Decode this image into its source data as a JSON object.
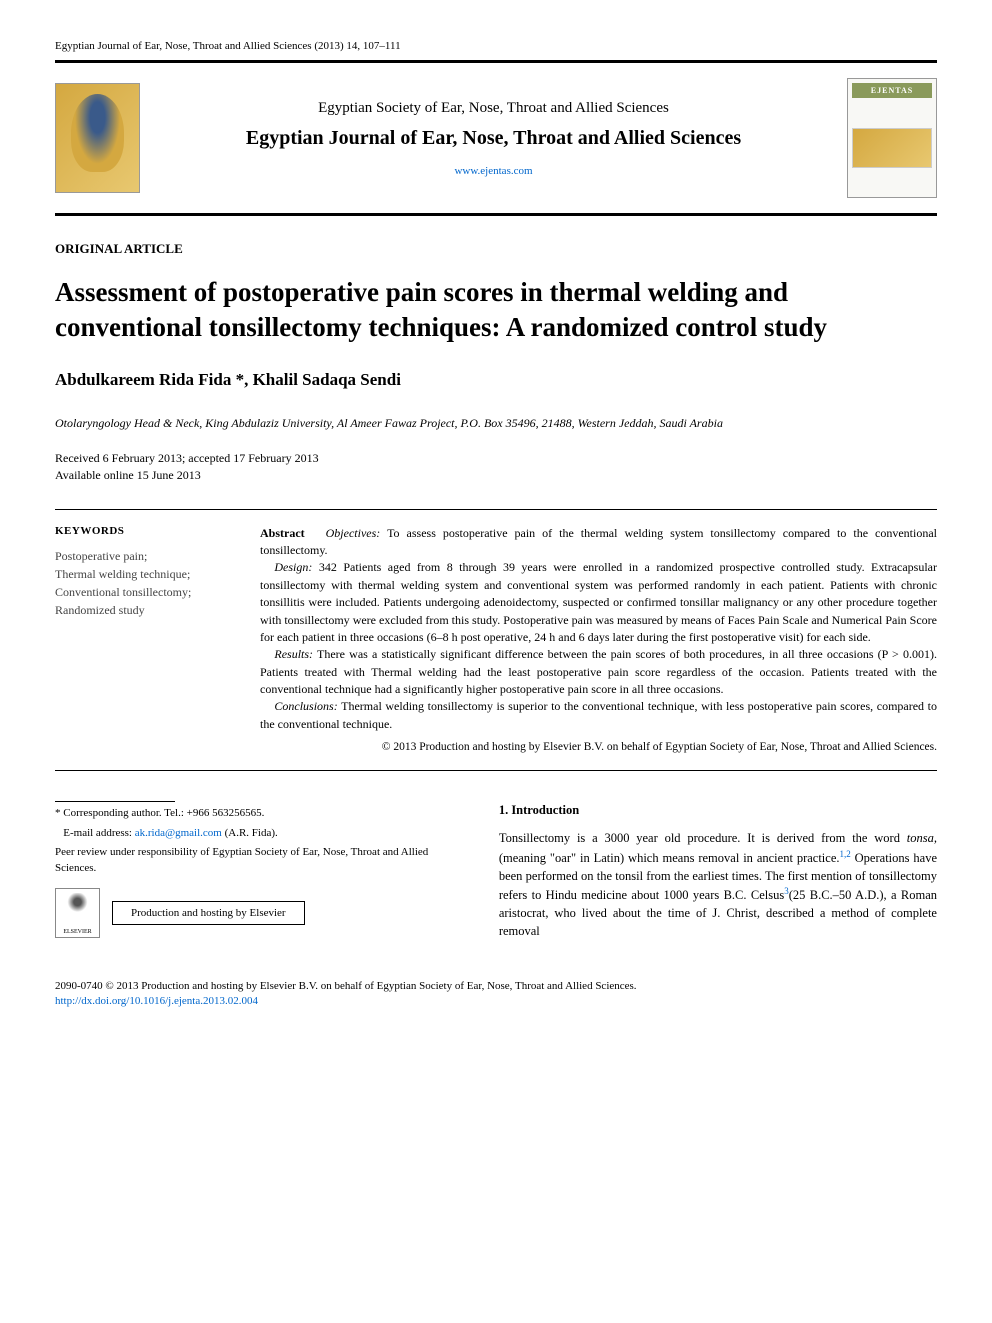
{
  "journal_ref": "Egyptian Journal of Ear, Nose, Throat and Allied Sciences (2013) 14, 107–111",
  "header": {
    "society": "Egyptian Society of Ear, Nose, Throat and Allied Sciences",
    "journal_title": "Egyptian Journal of Ear, Nose, Throat and Allied Sciences",
    "url": "www.ejentas.com",
    "cover_badge": "EJENTAS",
    "elsevier_label": "ELSEVIER"
  },
  "article_type": "ORIGINAL ARTICLE",
  "title": "Assessment of postoperative pain scores in thermal welding and conventional tonsillectomy techniques: A randomized control study",
  "authors": "Abdulkareem Rida Fida *, Khalil Sadaqa Sendi",
  "affiliation": "Otolaryngology Head & Neck, King Abdulaziz University, Al Ameer Fawaz Project, P.O. Box 35496, 21488, Western Jeddah, Saudi Arabia",
  "dates": {
    "received_accepted": "Received 6 February 2013; accepted 17 February 2013",
    "online": "Available online 15 June 2013"
  },
  "keywords": {
    "heading": "KEYWORDS",
    "items": "Postoperative pain;\nThermal welding technique;\nConventional tonsillectomy;\nRandomized study"
  },
  "abstract": {
    "label": "Abstract",
    "objectives_label": "Objectives:",
    "objectives": "To assess postoperative pain of the thermal welding system tonsillectomy compared to the conventional tonsillectomy.",
    "design_label": "Design:",
    "design": "342 Patients aged from 8 through 39 years were enrolled in a randomized prospective controlled study. Extracapsular tonsillectomy with thermal welding system and conventional system was performed randomly in each patient. Patients with chronic tonsillitis were included. Patients undergoing adenoidectomy, suspected or confirmed tonsillar malignancy or any other procedure together with tonsillectomy were excluded from this study. Postoperative pain was measured by means of Faces Pain Scale and Numerical Pain Score for each patient in three occasions (6–8 h post operative, 24 h and 6 days later during the first postoperative visit) for each side.",
    "results_label": "Results:",
    "results": "There was a statistically significant difference between the pain scores of both procedures, in all three occasions (P > 0.001). Patients treated with Thermal welding had the least postoperative pain score regardless of the occasion. Patients treated with the conventional technique had a significantly higher postoperative pain score in all three occasions.",
    "conclusions_label": "Conclusions:",
    "conclusions": "Thermal welding tonsillectomy is superior to the conventional technique, with less postoperative pain scores, compared to the conventional technique.",
    "copyright": "© 2013 Production and hosting by Elsevier B.V. on behalf of Egyptian Society of Ear, Nose, Throat and Allied Sciences."
  },
  "footnotes": {
    "corresponding": "* Corresponding author. Tel.: +966 563256565.",
    "email_label": "E-mail address:",
    "email": "ak.rida@gmail.com",
    "email_author": "(A.R. Fida).",
    "peer_review": "Peer review under responsibility of Egyptian Society of Ear, Nose, Throat and Allied Sciences.",
    "hosting": "Production and hosting by Elsevier"
  },
  "intro": {
    "heading": "1. Introduction",
    "body_before_tonsa": "Tonsillectomy is a 3000 year old procedure. It is derived from the word ",
    "tonsa": "tonsa,",
    "body_after_tonsa": " (meaning \"oar\" in Latin) which means removal in ancient practice.",
    "ref12": "1,2",
    "body_after_ref12": " Operations have been performed on the tonsil from the earliest times. The first mention of tonsillectomy refers to Hindu medicine about 1000 years B.C. Celsus",
    "ref3": "3",
    "body_after_ref3": "(25 B.C.–50 A.D.), a Roman aristocrat, who lived about the time of J. Christ, described a method of complete removal"
  },
  "bottom": {
    "issn_copyright": "2090-0740 © 2013 Production and hosting by Elsevier B.V. on behalf of Egyptian Society of Ear, Nose, Throat and Allied Sciences.",
    "doi": "http://dx.doi.org/10.1016/j.ejenta.2013.02.004"
  },
  "colors": {
    "text": "#000000",
    "link": "#0066cc",
    "rule": "#000000",
    "gold": "#d4a840",
    "olive": "#8a9a5b"
  },
  "typography": {
    "body_pt": 13,
    "title_pt": 27,
    "authors_pt": 17,
    "abstract_pt": 12,
    "footnote_pt": 11
  }
}
